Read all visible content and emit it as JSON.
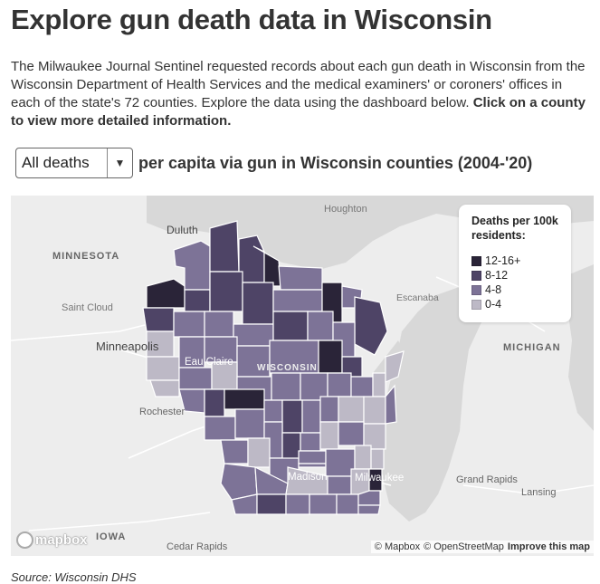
{
  "title": "Explore gun death data in Wisconsin",
  "intro_text": "The Milwaukee Journal Sentinel requested records about each gun death in Wisconsin from the Wisconsin Department of Health Services and the medical examiners' or coroners' offices in each of the state's 72 counties. Explore the data using the dashboard below.",
  "intro_cta": "Click on a county to view more detailed information.",
  "control": {
    "selected": "All deaths",
    "suffix": "per capita via gun in Wisconsin counties (2004-'20)"
  },
  "map_labels": {
    "houghton": "Houghton",
    "duluth": "Duluth",
    "minnesota": "MINNESOTA",
    "saint_cloud": "Saint Cloud",
    "minneapolis": "Minneapolis",
    "eau_claire": "Eau Claire",
    "wisconsin": "WISCONSIN",
    "escanaba": "Escanaba",
    "michigan": "MICHIGAN",
    "rochester": "Rochester",
    "madison": "Madison",
    "milwaukee": "Milwaukee",
    "grand_rapids": "Grand Rapids",
    "lansing": "Lansing",
    "iowa": "IOWA",
    "cedar_rapids": "Cedar Rapids"
  },
  "legend": {
    "title": "Deaths per 100k residents:",
    "items": [
      {
        "label": "12-16+",
        "color": "#2a2438"
      },
      {
        "label": "8-12",
        "color": "#4e4466"
      },
      {
        "label": "4-8",
        "color": "#7d7397"
      },
      {
        "label": "0-4",
        "color": "#bdb9c6"
      }
    ]
  },
  "logo": "mapbox",
  "attribution": {
    "mapbox": "© Mapbox",
    "osm": "© OpenStreetMap",
    "improve": "Improve this map"
  },
  "source": "Source: Wisconsin DHS"
}
